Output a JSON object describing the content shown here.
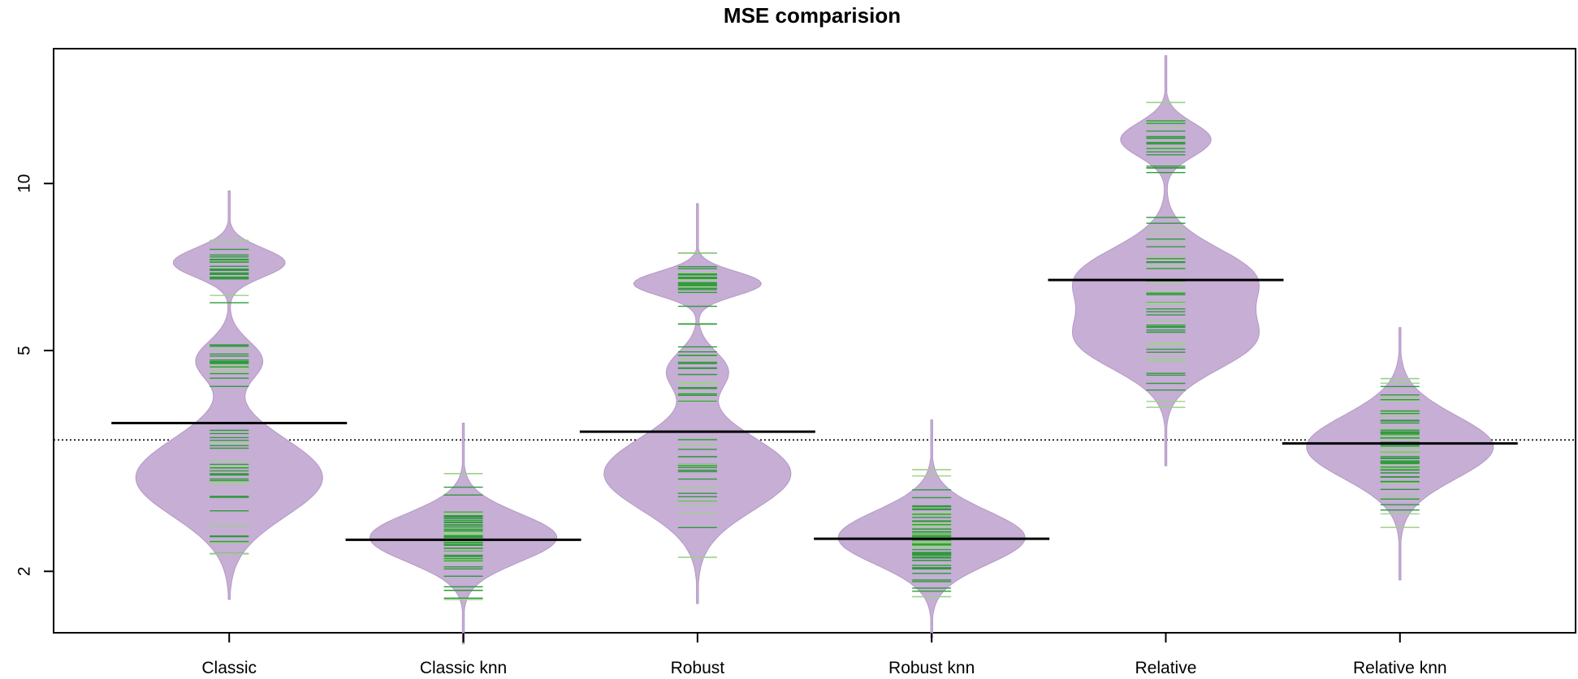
{
  "chart_data": {
    "type": "beanplot",
    "title": "MSE comparision",
    "xlabel": "",
    "ylabel": "",
    "y_scale": "log",
    "ylim": [
      1.55,
      17.5
    ],
    "y_ticks": [
      2,
      5,
      10
    ],
    "y_tick_labels": [
      "2",
      "5",
      "10"
    ],
    "overall_mean_line": 3.45,
    "categories": [
      "Classic",
      "Classic knn",
      "Robust",
      "Robust knn",
      "Relative",
      "Relative knn"
    ],
    "bean_means": [
      3.7,
      2.28,
      3.57,
      2.29,
      6.7,
      3.4
    ],
    "bean_ranges": [
      [
        2.15,
        7.9
      ],
      [
        1.78,
        3.0
      ],
      [
        2.12,
        7.5
      ],
      [
        1.8,
        3.05
      ],
      [
        3.95,
        14.0
      ],
      [
        2.4,
        4.45
      ]
    ],
    "colors": {
      "bean_fill": "#c6aed5",
      "bean_stroke": "#b499c6",
      "stripe_dark": "#2e9a3a",
      "stripe_light": "#9dd08c",
      "mean_line": "#000000",
      "axis": "#000000"
    }
  }
}
